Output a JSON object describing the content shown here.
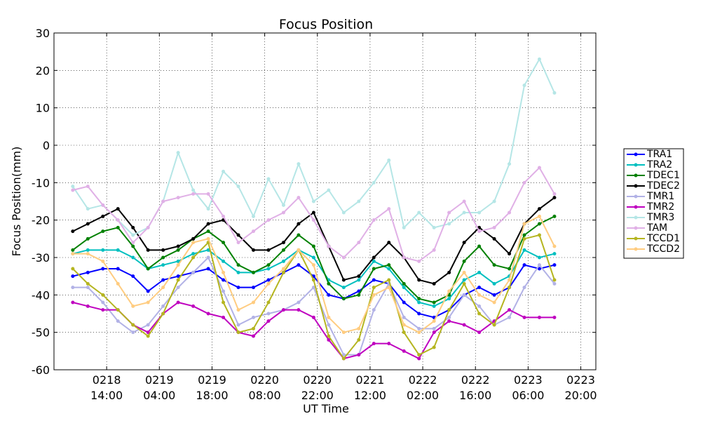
{
  "chart_data": {
    "type": "line",
    "title": "Focus Position",
    "x_label": "UT Time",
    "y_label": "Focus Position(mm)",
    "x": [
      "0218 05:00",
      "0218 09:00",
      "0218 13:00",
      "0218 17:00",
      "0218 21:00",
      "0219 01:00",
      "0219 05:00",
      "0219 09:00",
      "0219 13:00",
      "0219 17:00",
      "0219 21:00",
      "0220 01:00",
      "0220 05:00",
      "0220 09:00",
      "0220 13:00",
      "0220 17:00",
      "0220 21:00",
      "0221 01:00",
      "0221 05:00",
      "0221 09:00",
      "0221 13:00",
      "0221 17:00",
      "0221 21:00",
      "0222 01:00",
      "0222 05:00",
      "0222 09:00",
      "0222 13:00",
      "0222 17:00",
      "0222 21:00",
      "0223 01:00",
      "0223 05:00",
      "0223 09:00",
      "0223 13:00"
    ],
    "xlim": [
      "0218 00:00",
      "0224 00:00"
    ],
    "xticks": [
      {
        "value": "0218 14:00",
        "label": [
          "0218",
          "14:00"
        ]
      },
      {
        "value": "0219 04:00",
        "label": [
          "0219",
          "04:00"
        ]
      },
      {
        "value": "0219 18:00",
        "label": [
          "0219",
          "18:00"
        ]
      },
      {
        "value": "0220 08:00",
        "label": [
          "0220",
          "08:00"
        ]
      },
      {
        "value": "0220 22:00",
        "label": [
          "0220",
          "22:00"
        ]
      },
      {
        "value": "0221 12:00",
        "label": [
          "0221",
          "12:00"
        ]
      },
      {
        "value": "0222 02:00",
        "label": [
          "0222",
          "02:00"
        ]
      },
      {
        "value": "0222 16:00",
        "label": [
          "0222",
          "16:00"
        ]
      },
      {
        "value": "0223 06:00",
        "label": [
          "0223",
          "06:00"
        ]
      },
      {
        "value": "0223 20:00",
        "label": [
          "0223",
          "20:00"
        ]
      }
    ],
    "ylim": [
      -60,
      30
    ],
    "yticks": [
      30,
      20,
      10,
      0,
      -10,
      -20,
      -30,
      -40,
      -50,
      -60
    ],
    "grid": true,
    "legend": "right",
    "series": [
      {
        "name": "TRA1",
        "color": "#0000ff",
        "values": [
          -35,
          -34,
          -33,
          -33,
          -35,
          -39,
          -36,
          -35,
          -34,
          -33,
          -36,
          -38,
          -38,
          -36,
          -34,
          -32,
          -35,
          -40,
          -41,
          -39,
          -36,
          -37,
          -42,
          -45,
          -46,
          -44,
          -40,
          -38,
          -40,
          -38,
          -32,
          -33,
          -32
        ]
      },
      {
        "name": "TRA2",
        "color": "#00bfbf",
        "values": [
          -29,
          -28,
          -28,
          -28,
          -30,
          -33,
          -32,
          -31,
          -29,
          -28,
          -31,
          -34,
          -34,
          -33,
          -31,
          -28,
          -30,
          -36,
          -38,
          -36,
          -31,
          -33,
          -38,
          -42,
          -43,
          -41,
          -36,
          -34,
          -37,
          -35,
          -28,
          -30,
          -29
        ]
      },
      {
        "name": "TDEC1",
        "color": "#008000",
        "values": [
          -28,
          -25,
          -23,
          -22,
          -27,
          -33,
          -30,
          -28,
          -25,
          -23,
          -26,
          -32,
          -34,
          -32,
          -28,
          -24,
          -27,
          -37,
          -41,
          -40,
          -33,
          -32,
          -37,
          -41,
          -42,
          -40,
          -31,
          -27,
          -32,
          -33,
          -24,
          -21,
          -19
        ]
      },
      {
        "name": "TDEC2",
        "color": "#000000",
        "values": [
          -23,
          -21,
          -19,
          -17,
          -22,
          -28,
          -28,
          -27,
          -25,
          -21,
          -20,
          -24,
          -28,
          -28,
          -26,
          -21,
          -18,
          -27,
          -36,
          -35,
          -30,
          -26,
          -30,
          -36,
          -37,
          -34,
          -26,
          -22,
          -25,
          -29,
          -21,
          -17,
          -14
        ]
      },
      {
        "name": "TMR1",
        "color": "#b2b2e6",
        "values": [
          -38,
          -38,
          -42,
          -47,
          -50,
          -48,
          -43,
          -38,
          -34,
          -30,
          -39,
          -48,
          -46,
          -45,
          -44,
          -42,
          -38,
          -48,
          -56,
          -56,
          -44,
          -37,
          -46,
          -49,
          -49,
          -46,
          -40,
          -43,
          -48,
          -46,
          -38,
          -32,
          -37
        ]
      },
      {
        "name": "TMR2",
        "color": "#bf00bf",
        "values": [
          -42,
          -43,
          -44,
          -44,
          -48,
          -50,
          -45,
          -42,
          -43,
          -45,
          -46,
          -50,
          -51,
          -47,
          -44,
          -44,
          -46,
          -52,
          -57,
          -56,
          -53,
          -53,
          -55,
          -57,
          -50,
          -47,
          -48,
          -50,
          -47,
          -44,
          -46,
          -46,
          -46
        ]
      },
      {
        "name": "TMR3",
        "color": "#b5e6e6",
        "values": [
          -11,
          -17,
          -16,
          -20,
          -24,
          -22,
          -15,
          -2,
          -12,
          -17,
          -7,
          -11,
          -19,
          -9,
          -16,
          -5,
          -15,
          -12,
          -18,
          -15,
          -10,
          -4,
          -22,
          -18,
          -22,
          -21,
          -18,
          -18,
          -15,
          -5,
          16,
          23,
          14
        ]
      },
      {
        "name": "TAM",
        "color": "#e0b0e6",
        "values": [
          -12,
          -11,
          -16,
          -20,
          -26,
          -22,
          -15,
          -14,
          -13,
          -13,
          -19,
          -26,
          -23,
          -20,
          -18,
          -14,
          -20,
          -27,
          -30,
          -26,
          -20,
          -17,
          -30,
          -31,
          -28,
          -18,
          -15,
          -23,
          -22,
          -18,
          -10,
          -6,
          -13
        ]
      },
      {
        "name": "TCCD1",
        "color": "#b5b520",
        "values": [
          -33,
          -37,
          -40,
          -44,
          -48,
          -51,
          -45,
          -36,
          -30,
          -26,
          -42,
          -50,
          -49,
          -42,
          -34,
          -28,
          -36,
          -51,
          -57,
          -52,
          -38,
          -36,
          -50,
          -56,
          -54,
          -44,
          -37,
          -45,
          -48,
          -38,
          -25,
          -24,
          -36
        ]
      },
      {
        "name": "TCCD2",
        "color": "#ffcc80",
        "values": [
          -29,
          -29,
          -31,
          -37,
          -43,
          -42,
          -38,
          -32,
          -26,
          -25,
          -34,
          -44,
          -42,
          -37,
          -33,
          -28,
          -32,
          -46,
          -50,
          -49,
          -40,
          -38,
          -48,
          -50,
          -47,
          -39,
          -34,
          -40,
          -42,
          -36,
          -21,
          -19,
          -27
        ]
      }
    ]
  }
}
